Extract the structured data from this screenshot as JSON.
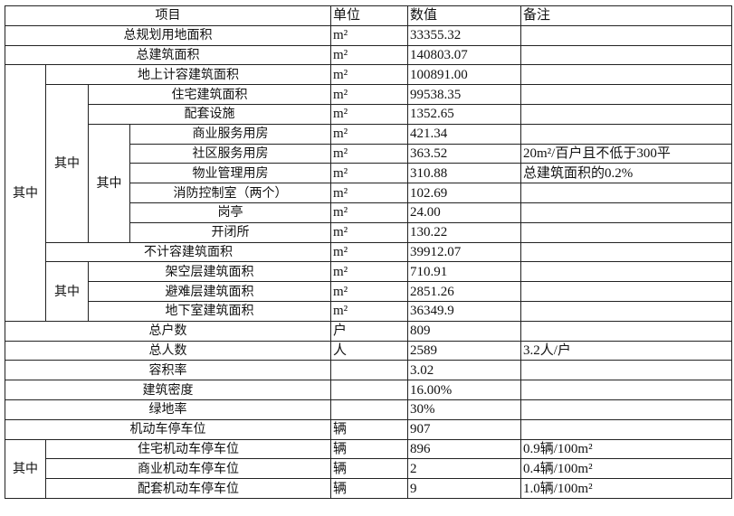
{
  "header": {
    "item": "项目",
    "unit": "单位",
    "value": "数值",
    "note": "备注"
  },
  "group_labels": [
    "其中",
    "其中",
    "其中",
    "其中",
    "其中"
  ],
  "rows": [
    {
      "item": "总规划用地面积",
      "unit": "m²",
      "value": "33355.32",
      "note": ""
    },
    {
      "item": "总建筑面积",
      "unit": "m²",
      "value": "140803.07",
      "note": ""
    },
    {
      "item": "地上计容建筑面积",
      "unit": "m²",
      "value": "100891.00",
      "note": ""
    },
    {
      "item": "住宅建筑面积",
      "unit": "m²",
      "value": "99538.35",
      "note": ""
    },
    {
      "item": "配套设施",
      "unit": "m²",
      "value": "1352.65",
      "note": ""
    },
    {
      "item": "商业服务用房",
      "unit": "m²",
      "value": "421.34",
      "note": ""
    },
    {
      "item": "社区服务用房",
      "unit": "m²",
      "value": "363.52",
      "note": "20m²/百户且不低于300平"
    },
    {
      "item": "物业管理用房",
      "unit": "m²",
      "value": "310.88",
      "note": "总建筑面积的0.2%"
    },
    {
      "item": "消防控制室（两个）",
      "unit": "m²",
      "value": "102.69",
      "note": ""
    },
    {
      "item": "岗亭",
      "unit": "m²",
      "value": "24.00",
      "note": ""
    },
    {
      "item": "开闭所",
      "unit": "m²",
      "value": "130.22",
      "note": ""
    },
    {
      "item": "不计容建筑面积",
      "unit": "m²",
      "value": "39912.07",
      "note": ""
    },
    {
      "item": "架空层建筑面积",
      "unit": "m²",
      "value": "710.91",
      "note": ""
    },
    {
      "item": "避难层建筑面积",
      "unit": "m²",
      "value": "2851.26",
      "note": ""
    },
    {
      "item": "地下室建筑面积",
      "unit": "m²",
      "value": "36349.9",
      "note": ""
    },
    {
      "item": "总户数",
      "unit": "户",
      "value": "809",
      "note": ""
    },
    {
      "item": "总人数",
      "unit": "人",
      "value": "2589",
      "note": "3.2人/户"
    },
    {
      "item": "容积率",
      "unit": "",
      "value": "3.02",
      "note": ""
    },
    {
      "item": "建筑密度",
      "unit": "",
      "value": "16.00%",
      "note": ""
    },
    {
      "item": "绿地率",
      "unit": "",
      "value": "30%",
      "note": ""
    },
    {
      "item": "机动车停车位",
      "unit": "辆",
      "value": "907",
      "note": ""
    },
    {
      "item": "住宅机动车停车位",
      "unit": "辆",
      "value": "896",
      "note": "0.9辆/100m²"
    },
    {
      "item": "商业机动车停车位",
      "unit": "辆",
      "value": "2",
      "note": "0.4辆/100m²"
    },
    {
      "item": "配套机动车停车位",
      "unit": "辆",
      "value": "9",
      "note": "1.0辆/100m²"
    }
  ]
}
